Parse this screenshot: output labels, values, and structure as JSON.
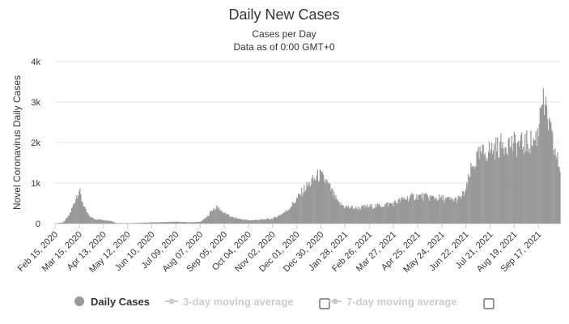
{
  "chart_data": {
    "type": "bar",
    "title": "Daily New Cases",
    "subtitle_lines": [
      "Cases per Day",
      "Data as of 0:00 GMT+0"
    ],
    "ylabel": "Novel Coronavirus Daily Cases",
    "xlabel": "",
    "ylim": [
      0,
      4000
    ],
    "y_ticks": [
      {
        "value": 0,
        "label": "0"
      },
      {
        "value": 1000,
        "label": "1k"
      },
      {
        "value": 2000,
        "label": "2k"
      },
      {
        "value": 3000,
        "label": "3k"
      },
      {
        "value": 4000,
        "label": "4k"
      }
    ],
    "x_tick_labels": [
      "Feb 15, 2020",
      "Mar 15, 2020",
      "Apr 13, 2020",
      "May 12, 2020",
      "Jun 10, 2020",
      "Jul 09, 2020",
      "Aug 07, 2020",
      "Sep 05, 2020",
      "Oct 04, 2020",
      "Nov 02, 2020",
      "Dec 01, 2020",
      "Dec 30, 2020",
      "Jan 28, 2021",
      "Feb 26, 2021",
      "Mar 27, 2021",
      "Apr 25, 2021",
      "May 24, 2021",
      "Jun 22, 2021",
      "Jul 21, 2021",
      "Aug 19, 2021",
      "Sep 17, 2021"
    ],
    "x_range": [
      "2020-02-15",
      "2021-10-13"
    ],
    "grid": true,
    "bar_color": "#999999",
    "series": [
      {
        "name": "Daily Cases",
        "points": [
          [
            "2020-02-15",
            0
          ],
          [
            "2020-02-25",
            30
          ],
          [
            "2020-03-03",
            200
          ],
          [
            "2020-03-08",
            450
          ],
          [
            "2020-03-12",
            700
          ],
          [
            "2020-03-15",
            820
          ],
          [
            "2020-03-18",
            600
          ],
          [
            "2020-03-22",
            350
          ],
          [
            "2020-03-27",
            180
          ],
          [
            "2020-04-03",
            110
          ],
          [
            "2020-04-13",
            90
          ],
          [
            "2020-04-22",
            70
          ],
          [
            "2020-04-28",
            15
          ],
          [
            "2020-05-12",
            8
          ],
          [
            "2020-05-25",
            15
          ],
          [
            "2020-06-10",
            30
          ],
          [
            "2020-06-25",
            35
          ],
          [
            "2020-07-09",
            45
          ],
          [
            "2020-07-25",
            30
          ],
          [
            "2020-08-07",
            40
          ],
          [
            "2020-08-15",
            150
          ],
          [
            "2020-08-22",
            350
          ],
          [
            "2020-08-28",
            400
          ],
          [
            "2020-09-05",
            260
          ],
          [
            "2020-09-15",
            150
          ],
          [
            "2020-09-25",
            110
          ],
          [
            "2020-10-04",
            80
          ],
          [
            "2020-10-15",
            90
          ],
          [
            "2020-11-02",
            120
          ],
          [
            "2020-11-10",
            200
          ],
          [
            "2020-11-20",
            330
          ],
          [
            "2020-12-01",
            600
          ],
          [
            "2020-12-10",
            850
          ],
          [
            "2020-12-20",
            1050
          ],
          [
            "2020-12-28",
            1200
          ],
          [
            "2021-01-05",
            1050
          ],
          [
            "2021-01-12",
            800
          ],
          [
            "2021-01-20",
            500
          ],
          [
            "2021-01-28",
            420
          ],
          [
            "2021-02-10",
            380
          ],
          [
            "2021-02-26",
            420
          ],
          [
            "2021-03-10",
            440
          ],
          [
            "2021-03-27",
            500
          ],
          [
            "2021-04-10",
            620
          ],
          [
            "2021-04-25",
            680
          ],
          [
            "2021-05-10",
            650
          ],
          [
            "2021-05-24",
            620
          ],
          [
            "2021-06-05",
            580
          ],
          [
            "2021-06-15",
            620
          ],
          [
            "2021-06-22",
            820
          ],
          [
            "2021-06-28",
            1300
          ],
          [
            "2021-07-05",
            1600
          ],
          [
            "2021-07-10",
            1700
          ],
          [
            "2021-07-21",
            1820
          ],
          [
            "2021-08-01",
            1900
          ],
          [
            "2021-08-10",
            2000
          ],
          [
            "2021-08-19",
            1950
          ],
          [
            "2021-08-28",
            1950
          ],
          [
            "2021-09-05",
            2000
          ],
          [
            "2021-09-12",
            2050
          ],
          [
            "2021-09-17",
            2250
          ],
          [
            "2021-09-20",
            3250
          ],
          [
            "2021-09-24",
            2850
          ],
          [
            "2021-09-29",
            2500
          ],
          [
            "2021-10-05",
            1900
          ],
          [
            "2021-10-13",
            1350
          ]
        ]
      }
    ],
    "legend": [
      {
        "label": "Daily Cases",
        "color": "#999999",
        "active": true,
        "has_checkbox": false
      },
      {
        "label": "3-day moving average",
        "color": "#cccccc",
        "active": false,
        "has_checkbox": true
      },
      {
        "label": "7-day moving average",
        "color": "#cccccc",
        "active": false,
        "has_checkbox": true
      }
    ],
    "legend_position": "bottom-center"
  }
}
